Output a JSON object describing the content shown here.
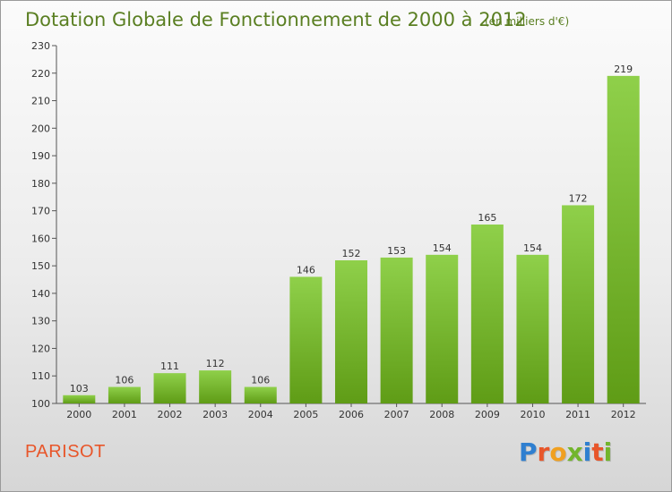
{
  "chart_data": {
    "type": "bar",
    "title": "Dotation Globale de Fonctionnement de 2000 à 2012",
    "subtitle": "(en milliers d'€)",
    "categories": [
      "2000",
      "2001",
      "2002",
      "2003",
      "2004",
      "2005",
      "2006",
      "2007",
      "2008",
      "2009",
      "2010",
      "2011",
      "2012"
    ],
    "values": [
      103,
      106,
      111,
      112,
      106,
      146,
      152,
      153,
      154,
      165,
      154,
      172,
      219
    ],
    "ylim": [
      100,
      230
    ],
    "yticks": [
      100,
      110,
      120,
      130,
      140,
      150,
      160,
      170,
      180,
      190,
      200,
      210,
      220,
      230
    ],
    "grid": false,
    "bar_color_top": "#8fd04a",
    "bar_color_bottom": "#5f9c16"
  },
  "commune": "PARISOT",
  "logo": {
    "text": "Proxiti",
    "letters": [
      {
        "ch": "P",
        "color": "#2f7fd0"
      },
      {
        "ch": "r",
        "color": "#e8562a"
      },
      {
        "ch": "o",
        "color": "#f0a020"
      },
      {
        "ch": "x",
        "color": "#72b52c"
      },
      {
        "ch": "i",
        "color": "#2f7fd0"
      },
      {
        "ch": "t",
        "color": "#e8562a"
      },
      {
        "ch": "i",
        "color": "#72b52c"
      }
    ]
  }
}
